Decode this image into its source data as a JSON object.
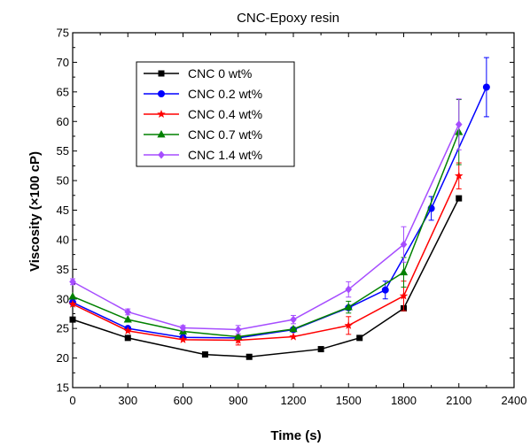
{
  "chart_data": {
    "type": "line",
    "title": "CNC-Epoxy resin",
    "xlabel": "Time (s)",
    "ylabel": "Viscosity (×100 cP)",
    "xlim": [
      0,
      2400
    ],
    "ylim": [
      15,
      75
    ],
    "xticks": [
      0,
      300,
      600,
      900,
      1200,
      1500,
      1800,
      2100,
      2400
    ],
    "yticks": [
      15,
      20,
      25,
      30,
      35,
      40,
      45,
      50,
      55,
      60,
      65,
      70,
      75
    ],
    "grid": false,
    "legend_position": "top-left",
    "series": [
      {
        "name": "CNC 0 wt%",
        "color": "#000000",
        "marker": "square",
        "x": [
          0,
          300,
          720,
          960,
          1350,
          1560,
          1800,
          2100
        ],
        "y": [
          26.5,
          23.4,
          20.6,
          20.2,
          21.5,
          23.4,
          28.4,
          47.0
        ],
        "err": [
          0,
          0,
          0,
          0,
          0,
          0,
          0,
          0
        ]
      },
      {
        "name": "CNC 0.2 wt%",
        "color": "#0000ff",
        "marker": "circle",
        "x": [
          0,
          300,
          600,
          900,
          1200,
          1500,
          1700,
          1950,
          2250
        ],
        "y": [
          29.4,
          25.0,
          23.5,
          23.4,
          24.8,
          28.5,
          31.5,
          45.3,
          65.8
        ],
        "err": [
          0,
          0,
          0,
          0,
          0,
          0,
          1.5,
          2.0,
          5.0
        ]
      },
      {
        "name": "CNC 0.4 wt%",
        "color": "#ff0000",
        "marker": "star",
        "x": [
          0,
          300,
          600,
          900,
          1200,
          1500,
          1800,
          2100
        ],
        "y": [
          29.1,
          24.6,
          23.1,
          23.0,
          23.6,
          25.5,
          30.5,
          50.8
        ],
        "err": [
          0,
          0,
          0,
          0.8,
          0,
          1.5,
          2.5,
          2.2
        ]
      },
      {
        "name": "CNC 0.7 wt%",
        "color": "#008000",
        "marker": "triangle",
        "x": [
          0,
          300,
          600,
          900,
          1200,
          1500,
          1800,
          2100
        ],
        "y": [
          30.4,
          26.5,
          24.5,
          23.6,
          24.9,
          28.6,
          34.5,
          58.2
        ],
        "err": [
          0,
          0,
          0,
          0,
          0,
          1.0,
          2.5,
          5.5
        ]
      },
      {
        "name": "CNC 1.4 wt%",
        "color": "#a64dff",
        "marker": "diamond",
        "x": [
          0,
          300,
          600,
          900,
          1200,
          1500,
          1800,
          2100
        ],
        "y": [
          32.9,
          27.8,
          25.1,
          24.8,
          26.5,
          31.6,
          39.2,
          59.5
        ],
        "err": [
          0.5,
          0.5,
          0.4,
          0.7,
          0.7,
          1.3,
          3.0,
          4.3
        ]
      }
    ]
  }
}
